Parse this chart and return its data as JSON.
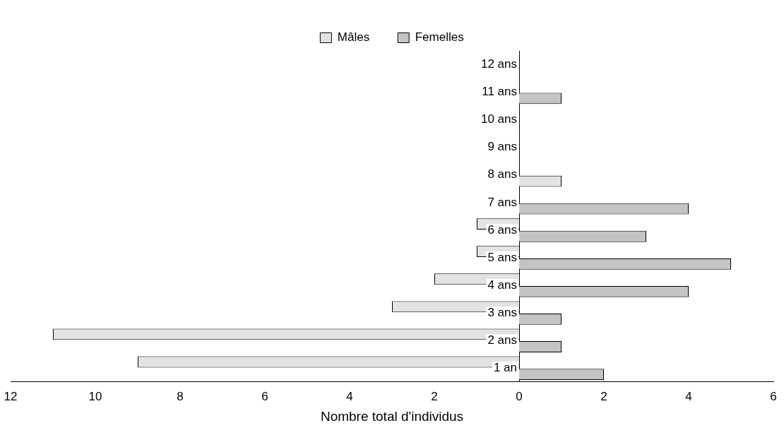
{
  "chart_data": {
    "type": "bar",
    "orientation": "horizontal",
    "xlabel": "Nombre total d'individus",
    "categories": [
      "12 ans",
      "11 ans",
      "10 ans",
      "9 ans",
      "8 ans",
      "7 ans",
      "6 ans",
      "5 ans",
      "4 ans",
      "3 ans",
      "2 ans",
      "1 an"
    ],
    "series": [
      {
        "name": "Mâles",
        "color": "#e3e3e3",
        "values": [
          null,
          null,
          null,
          null,
          null,
          null,
          -1,
          -1,
          -2,
          -3,
          -11,
          -9
        ]
      },
      {
        "name": "Femelles",
        "color": "#c4c4c4",
        "colors": [
          "#c4c4c4",
          "#c4c4c4",
          "#c4c4c4",
          "#c4c4c4",
          "#e3e3e3",
          "#c4c4c4",
          "#c4c4c4",
          "#c4c4c4",
          "#c4c4c4",
          "#c4c4c4",
          "#c4c4c4",
          "#c4c4c4"
        ],
        "values": [
          null,
          1,
          null,
          null,
          1,
          4,
          3,
          5,
          4,
          1,
          1,
          2
        ]
      }
    ],
    "xlim": [
      -12,
      6
    ],
    "xticks": [
      {
        "value": -12,
        "label": "12"
      },
      {
        "value": -10,
        "label": "10"
      },
      {
        "value": -8,
        "label": "8"
      },
      {
        "value": -6,
        "label": "6"
      },
      {
        "value": -4,
        "label": "4"
      },
      {
        "value": -2,
        "label": "2"
      },
      0,
      2,
      4,
      6
    ],
    "grid": false,
    "legend": "top"
  }
}
